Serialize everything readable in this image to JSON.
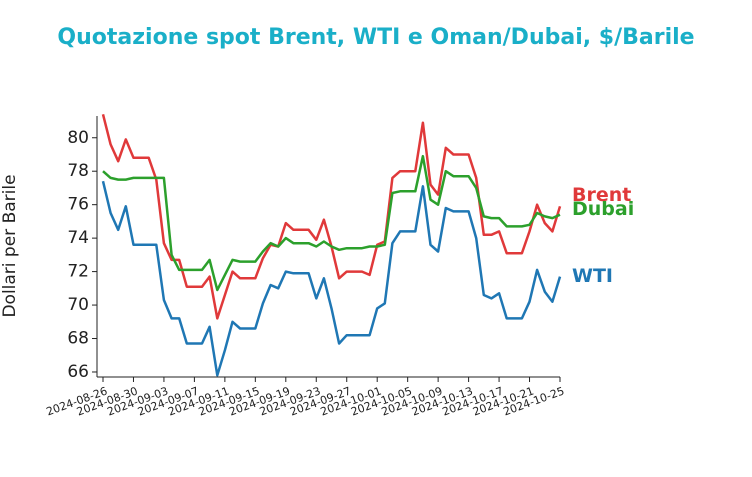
{
  "chart_data": {
    "type": "line",
    "title": "Quotazione spot Brent, WTI e Oman/Dubai, $/Barile",
    "y_label": "Dollari per Barile",
    "x": [
      "2024-08-26",
      "2024-08-27",
      "2024-08-28",
      "2024-08-29",
      "2024-08-30",
      "2024-08-31",
      "2024-09-01",
      "2024-09-02",
      "2024-09-03",
      "2024-09-04",
      "2024-09-05",
      "2024-09-06",
      "2024-09-07",
      "2024-09-08",
      "2024-09-09",
      "2024-09-10",
      "2024-09-11",
      "2024-09-12",
      "2024-09-13",
      "2024-09-14",
      "2024-09-15",
      "2024-09-16",
      "2024-09-17",
      "2024-09-18",
      "2024-09-19",
      "2024-09-20",
      "2024-09-21",
      "2024-09-22",
      "2024-09-23",
      "2024-09-24",
      "2024-09-25",
      "2024-09-26",
      "2024-09-27",
      "2024-09-28",
      "2024-09-29",
      "2024-09-30",
      "2024-10-01",
      "2024-10-02",
      "2024-10-03",
      "2024-10-04",
      "2024-10-05",
      "2024-10-06",
      "2024-10-07",
      "2024-10-08",
      "2024-10-09",
      "2024-10-10",
      "2024-10-11",
      "2024-10-12",
      "2024-10-13",
      "2024-10-14",
      "2024-10-15",
      "2024-10-16",
      "2024-10-17",
      "2024-10-18",
      "2024-10-19",
      "2024-10-20",
      "2024-10-21",
      "2024-10-22",
      "2024-10-23",
      "2024-10-24",
      "2024-10-25"
    ],
    "series": [
      {
        "name": "Brent",
        "color": "#e0393a",
        "values": [
          81.4,
          79.6,
          78.6,
          79.9,
          78.8,
          78.8,
          78.8,
          77.5,
          73.7,
          72.7,
          72.7,
          71.1,
          71.1,
          71.1,
          71.7,
          69.2,
          70.6,
          72.0,
          71.6,
          71.6,
          71.6,
          72.8,
          73.6,
          73.5,
          74.9,
          74.5,
          74.5,
          74.5,
          73.9,
          75.1,
          73.5,
          71.6,
          72.0,
          72.0,
          72.0,
          71.8,
          73.6,
          73.8,
          77.6,
          78.0,
          78.0,
          78.0,
          80.9,
          77.2,
          76.6,
          79.4,
          79.0,
          79.0,
          79.0,
          77.6,
          74.2,
          74.2,
          74.4,
          73.1,
          73.1,
          73.1,
          74.4,
          76.0,
          74.9,
          74.4,
          75.9
        ]
      },
      {
        "name": "Dubai",
        "color": "#2ca02c",
        "values": [
          78.0,
          77.6,
          77.5,
          77.5,
          77.6,
          77.6,
          77.6,
          77.6,
          77.6,
          73.0,
          72.1,
          72.1,
          72.1,
          72.1,
          72.7,
          70.9,
          71.8,
          72.7,
          72.6,
          72.6,
          72.6,
          73.2,
          73.7,
          73.5,
          74.0,
          73.7,
          73.7,
          73.7,
          73.5,
          73.8,
          73.5,
          73.3,
          73.4,
          73.4,
          73.4,
          73.5,
          73.5,
          73.6,
          76.7,
          76.8,
          76.8,
          76.8,
          78.9,
          76.3,
          76.0,
          78.0,
          77.7,
          77.7,
          77.7,
          77.0,
          75.3,
          75.2,
          75.2,
          74.7,
          74.7,
          74.7,
          74.8,
          75.5,
          75.3,
          75.2,
          75.4
        ]
      },
      {
        "name": "WTI",
        "color": "#1f77b4",
        "values": [
          77.4,
          75.5,
          74.5,
          75.9,
          73.6,
          73.6,
          73.6,
          73.6,
          70.3,
          69.2,
          69.2,
          67.7,
          67.7,
          67.7,
          68.7,
          65.8,
          67.3,
          69.0,
          68.6,
          68.6,
          68.6,
          70.1,
          71.2,
          71.0,
          72.0,
          71.9,
          71.9,
          71.9,
          70.4,
          71.6,
          69.8,
          67.7,
          68.2,
          68.2,
          68.2,
          68.2,
          69.8,
          70.1,
          73.7,
          74.4,
          74.4,
          74.4,
          77.1,
          73.6,
          73.2,
          75.8,
          75.6,
          75.6,
          75.6,
          74.0,
          70.6,
          70.4,
          70.7,
          69.2,
          69.2,
          69.2,
          70.2,
          72.1,
          70.8,
          70.2,
          71.7
        ]
      }
    ],
    "xlim": [
      "2024-08-26",
      "2024-10-25"
    ],
    "xticks": [
      "2024-08-26",
      "2024-08-30",
      "2024-09-03",
      "2024-09-07",
      "2024-09-11",
      "2024-09-15",
      "2024-09-19",
      "2024-09-23",
      "2024-09-27",
      "2024-10-01",
      "2024-10-05",
      "2024-10-09",
      "2024-10-13",
      "2024-10-17",
      "2024-10-21",
      "2024-10-25"
    ],
    "ylim": [
      65.7,
      81.3
    ],
    "yticks": [
      66,
      68,
      70,
      72,
      74,
      76,
      78,
      80
    ]
  }
}
